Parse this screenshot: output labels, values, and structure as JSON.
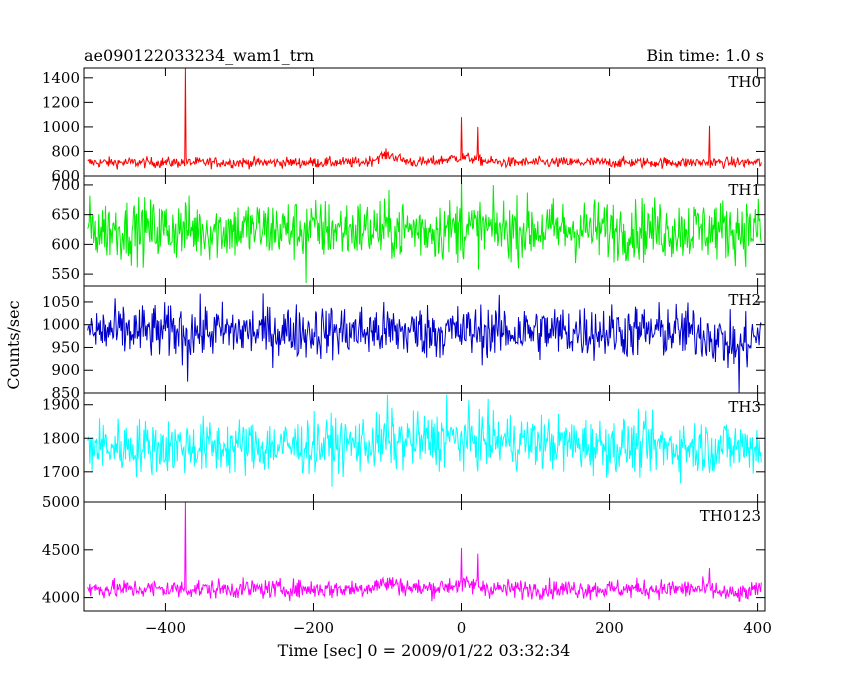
{
  "header": {
    "title": "ae090122033234_wam1_trn",
    "bin_time": "Bin time: 1.0 s"
  },
  "chart_data": {
    "type": "line",
    "title": "ae090122033234_wam1_trn",
    "subtitle": "Bin time: 1.0 s",
    "xlabel": "Time [sec] 0 = 2009/01/22 03:32:34",
    "ylabel": "Counts/sec",
    "xlim": [
      -510,
      410
    ],
    "x_ticks": [
      -400,
      -200,
      0,
      200,
      400
    ],
    "x_tick_labels": [
      "−400",
      "−200",
      "0",
      "200",
      "400"
    ],
    "x_start": -505,
    "x_end": 405,
    "x_step": 1,
    "panels": [
      {
        "name": "TH0",
        "color": "#ff0000",
        "ylim": [
          600,
          1480
        ],
        "yticks": [
          600,
          800,
          1000,
          1200,
          1400
        ],
        "base": 710,
        "noise": 22,
        "spikes": [
          [
            -373,
            1480
          ],
          [
            0,
            1080
          ],
          [
            22,
            1000
          ],
          [
            335,
            1010
          ]
        ],
        "humps": [
          [
            -100,
            20,
            60
          ],
          [
            0,
            30,
            40
          ]
        ]
      },
      {
        "name": "TH1",
        "color": "#00ee00",
        "ylim": [
          530,
          715
        ],
        "yticks": [
          550,
          600,
          650,
          700
        ],
        "base": 625,
        "noise": 26,
        "spikes": [
          [
            -210,
            535
          ],
          [
            0,
            712
          ]
        ],
        "humps": []
      },
      {
        "name": "TH2",
        "color": "#0000cc",
        "ylim": [
          850,
          1085
        ],
        "yticks": [
          850,
          900,
          950,
          1000,
          1050
        ],
        "base": 985,
        "noise": 30,
        "spikes": [
          [
            -370,
            875
          ],
          [
            375,
            850
          ]
        ],
        "humps": [
          [
            370,
            30,
            -30
          ]
        ]
      },
      {
        "name": "TH3",
        "color": "#00ffff",
        "ylim": [
          1610,
          1935
        ],
        "yticks": [
          1700,
          1800,
          1900
        ],
        "base": 1775,
        "noise": 42,
        "spikes": [
          [
            -100,
            1930
          ],
          [
            -20,
            1930
          ]
        ],
        "humps": [
          [
            0,
            150,
            20
          ]
        ]
      },
      {
        "name": "TH0123",
        "color": "#ff00ff",
        "ylim": [
          3860,
          5000
        ],
        "yticks": [
          4000,
          4500,
          5000
        ],
        "base": 4090,
        "noise": 50,
        "spikes": [
          [
            -373,
            5000
          ],
          [
            0,
            4520
          ],
          [
            22,
            4460
          ],
          [
            335,
            4310
          ]
        ],
        "humps": [
          [
            -100,
            25,
            60
          ],
          [
            0,
            30,
            50
          ],
          [
            370,
            25,
            -60
          ]
        ]
      }
    ]
  }
}
